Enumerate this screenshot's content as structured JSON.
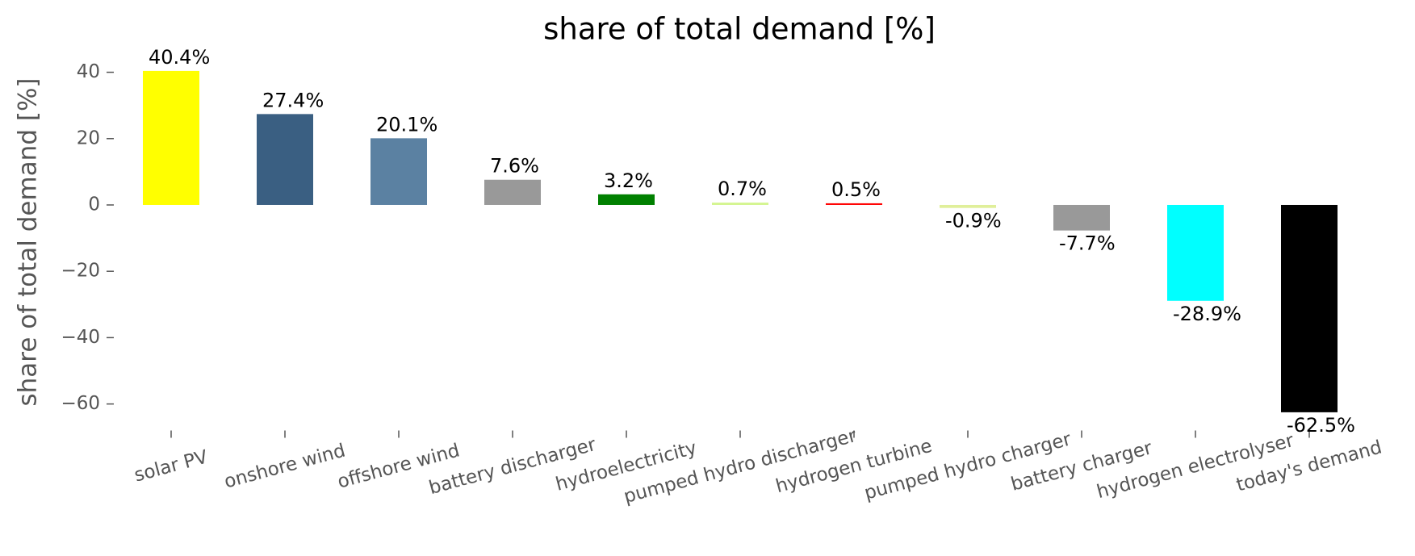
{
  "chart_data": {
    "type": "bar",
    "title": "share of total demand [%]",
    "y_label": "share of total demand [%]",
    "categories": [
      "solar PV",
      "onshore wind",
      "offshore wind",
      "battery discharger",
      "hydroelectricity",
      "pumped hydro discharger",
      "hydrogen turbine",
      "pumped hydro charger",
      "battery charger",
      "hydrogen electrolyser",
      "today's demand"
    ],
    "values": [
      40.4,
      27.4,
      20.1,
      7.6,
      3.2,
      0.7,
      0.5,
      -0.9,
      -7.7,
      -28.9,
      -62.5
    ],
    "value_labels": [
      "40.4%",
      "27.4%",
      "20.1%",
      "7.6%",
      "3.2%",
      "0.7%",
      "0.5%",
      "-0.9%",
      "-7.7%",
      "-28.9%",
      "-62.5%"
    ],
    "colors": [
      "#ffff00",
      "#3a5f82",
      "#5b81a2",
      "#999999",
      "#008000",
      "#d4f58f",
      "#ff0000",
      "#e0ef9a",
      "#999999",
      "#00ffff",
      "#000000"
    ],
    "ylim": [
      -68,
      45
    ],
    "yticks": [
      {
        "value": -60,
        "label": "−60"
      },
      {
        "value": -40,
        "label": "−40"
      },
      {
        "value": -20,
        "label": "−20"
      },
      0,
      20,
      40
    ]
  }
}
